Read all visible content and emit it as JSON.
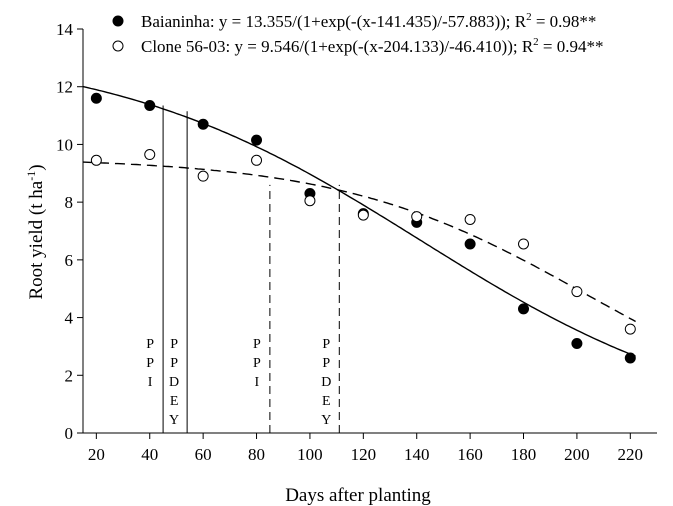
{
  "chart_data": {
    "type": "scatter",
    "xlabel": "Days after planting",
    "ylabel_main": "Root yield (t ha",
    "ylabel_sup": "-1",
    "ylabel_close": ")",
    "xlim": [
      15,
      230
    ],
    "ylim": [
      0,
      14
    ],
    "xticks": [
      20,
      40,
      60,
      80,
      100,
      120,
      140,
      160,
      180,
      200,
      220
    ],
    "yticks": [
      0,
      2,
      4,
      6,
      8,
      10,
      12,
      14
    ],
    "grid": false,
    "legend_position": "top",
    "series": [
      {
        "name": "Baianinha",
        "equation": "Baianinha: y = 13.355/(1+exp(-(x-141.435)/-57.883));   R",
        "r2_suffix": " = 0.98**",
        "marker": "filled-circle",
        "line_style": "solid",
        "model": {
          "a": 13.355,
          "x0": 141.435,
          "b": -57.883
        },
        "x": [
          20,
          40,
          60,
          80,
          100,
          120,
          140,
          160,
          180,
          200,
          220
        ],
        "y": [
          11.6,
          11.35,
          10.7,
          10.15,
          8.3,
          7.6,
          7.3,
          6.55,
          4.3,
          3.1,
          2.6
        ]
      },
      {
        "name": "Clone 56-03",
        "equation": "Clone 56-03: y = 9.546/(1+exp(-(x-204.133)/-46.410)); R",
        "r2_suffix": " = 0.94**",
        "marker": "open-circle",
        "line_style": "dashed",
        "model": {
          "a": 9.546,
          "x0": 204.133,
          "b": -46.41
        },
        "x": [
          20,
          40,
          60,
          80,
          100,
          120,
          140,
          160,
          180,
          200,
          220
        ],
        "y": [
          9.45,
          9.65,
          8.9,
          9.45,
          8.05,
          7.55,
          7.5,
          7.4,
          6.55,
          4.9,
          3.6
        ]
      }
    ],
    "reference_lines": [
      {
        "x": 45,
        "style": "solid",
        "letters": [
          "P",
          "P",
          "I"
        ]
      },
      {
        "x": 54,
        "style": "solid",
        "letters": [
          "P",
          "P",
          "D",
          "E",
          "Y"
        ]
      },
      {
        "x": 85,
        "style": "dashed",
        "letters": [
          "P",
          "P",
          "I"
        ]
      },
      {
        "x": 111,
        "style": "dashed",
        "letters": [
          "P",
          "P",
          "D",
          "E",
          "Y"
        ]
      }
    ],
    "colors": {
      "axis": "#000000",
      "marker": "#000000"
    }
  }
}
